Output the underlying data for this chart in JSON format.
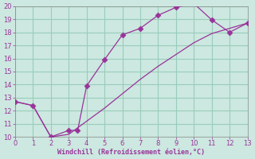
{
  "xlabel": "Windchill (Refroidissement éolien,°C)",
  "line1_x": [
    0,
    1,
    2,
    3,
    3.5,
    4,
    5,
    6,
    7,
    8,
    9,
    10,
    11,
    12,
    13
  ],
  "line1_y": [
    12.7,
    12.4,
    10.0,
    10.5,
    10.5,
    13.9,
    15.9,
    17.8,
    18.3,
    19.3,
    19.9,
    20.2,
    18.95,
    18.0,
    18.7
  ],
  "line2_x": [
    0,
    1,
    2,
    3,
    4,
    5,
    6,
    7,
    8,
    9,
    10,
    11,
    12,
    13
  ],
  "line2_y": [
    12.7,
    12.4,
    10.0,
    10.2,
    11.2,
    12.2,
    13.3,
    14.4,
    15.4,
    16.3,
    17.2,
    17.9,
    18.3,
    18.7
  ],
  "line_color": "#993399",
  "bg_color": "#cce8e0",
  "grid_color": "#99ccbb",
  "xlim": [
    0,
    13
  ],
  "ylim": [
    10,
    20
  ],
  "xticks": [
    0,
    1,
    2,
    3,
    4,
    5,
    6,
    7,
    8,
    9,
    10,
    11,
    12,
    13
  ],
  "yticks": [
    10,
    11,
    12,
    13,
    14,
    15,
    16,
    17,
    18,
    19,
    20
  ],
  "markersize": 3.5
}
